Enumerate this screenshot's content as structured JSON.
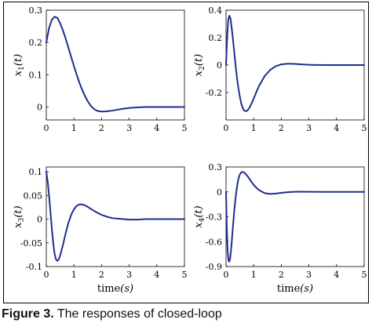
{
  "chart_data": [
    {
      "type": "line",
      "ylabel_var": "x",
      "ylabel_sub": "1",
      "ylabel_arg": "(t)",
      "xlabel_var": "",
      "xlabel_arg": "",
      "xlim": [
        0,
        5
      ],
      "ylim": [
        -0.04,
        0.3
      ],
      "xticks": [
        0,
        1,
        2,
        3,
        4,
        5
      ],
      "yticks": [
        0,
        0.1,
        0.2,
        0.3
      ],
      "ytick_labels": [
        "0",
        "0.1",
        "0.2",
        "0.3"
      ],
      "series": [
        {
          "color": "#1f2e8c",
          "x": [
            0,
            0.1,
            0.2,
            0.3,
            0.4,
            0.5,
            0.6,
            0.7,
            0.8,
            0.9,
            1.0,
            1.1,
            1.2,
            1.3,
            1.4,
            1.5,
            1.6,
            1.7,
            1.8,
            1.9,
            2.0,
            2.1,
            2.2,
            2.4,
            2.6,
            2.8,
            3.0,
            3.3,
            3.6,
            4.0,
            4.5,
            5.0
          ],
          "y": [
            0.2,
            0.245,
            0.27,
            0.28,
            0.276,
            0.26,
            0.238,
            0.212,
            0.184,
            0.155,
            0.127,
            0.1,
            0.075,
            0.053,
            0.034,
            0.018,
            0.005,
            -0.004,
            -0.01,
            -0.013,
            -0.014,
            -0.014,
            -0.013,
            -0.011,
            -0.008,
            -0.005,
            -0.003,
            -0.001,
            0,
            0,
            0,
            0
          ]
        }
      ]
    },
    {
      "type": "line",
      "ylabel_var": "x",
      "ylabel_sub": "2",
      "ylabel_arg": "(t)",
      "xlabel_var": "",
      "xlabel_arg": "",
      "xlim": [
        0,
        5
      ],
      "ylim": [
        -0.4,
        0.4
      ],
      "xticks": [
        0,
        1,
        2,
        3,
        4,
        5
      ],
      "yticks": [
        -0.2,
        0,
        0.2,
        0.4
      ],
      "ytick_labels": [
        "-0.2",
        "0",
        "0.2",
        "0.4"
      ],
      "series": [
        {
          "color": "#1f2e8c",
          "x": [
            0,
            0.04,
            0.08,
            0.12,
            0.16,
            0.2,
            0.25,
            0.3,
            0.35,
            0.4,
            0.45,
            0.5,
            0.55,
            0.6,
            0.65,
            0.7,
            0.75,
            0.8,
            0.85,
            0.9,
            1.0,
            1.1,
            1.2,
            1.4,
            1.6,
            1.8,
            2.0,
            2.2,
            2.4,
            2.6,
            2.8,
            3.0,
            3.3,
            3.6,
            4.0,
            4.5,
            5.0
          ],
          "y": [
            0,
            0.2,
            0.33,
            0.36,
            0.34,
            0.28,
            0.19,
            0.09,
            -0.01,
            -0.1,
            -0.17,
            -0.23,
            -0.28,
            -0.31,
            -0.33,
            -0.335,
            -0.335,
            -0.325,
            -0.31,
            -0.29,
            -0.245,
            -0.195,
            -0.15,
            -0.08,
            -0.035,
            -0.008,
            0.005,
            0.009,
            0.009,
            0.007,
            0.004,
            0.002,
            0.001,
            0,
            0,
            0,
            0
          ]
        }
      ]
    },
    {
      "type": "line",
      "ylabel_var": "x",
      "ylabel_sub": "3",
      "ylabel_arg": "(t)",
      "xlabel_var": "time",
      "xlabel_arg": "(s)",
      "xlim": [
        0,
        5
      ],
      "ylim": [
        -0.1,
        0.11
      ],
      "xticks": [
        0,
        1,
        2,
        3,
        4,
        5
      ],
      "yticks": [
        -0.1,
        -0.05,
        0,
        0.05,
        0.1
      ],
      "ytick_labels": [
        "-0.1",
        "-0.05",
        "0",
        "0.05",
        "0.1"
      ],
      "series": [
        {
          "color": "#1f2e8c",
          "x": [
            0,
            0.05,
            0.1,
            0.15,
            0.2,
            0.25,
            0.3,
            0.35,
            0.4,
            0.45,
            0.5,
            0.6,
            0.7,
            0.8,
            0.9,
            1.0,
            1.1,
            1.2,
            1.3,
            1.4,
            1.5,
            1.6,
            1.8,
            2.0,
            2.2,
            2.4,
            2.6,
            2.8,
            3.0,
            3.3,
            3.6,
            4.0,
            4.5,
            5.0
          ],
          "y": [
            0.1,
            0.08,
            0.05,
            0.015,
            -0.02,
            -0.05,
            -0.073,
            -0.085,
            -0.088,
            -0.085,
            -0.077,
            -0.055,
            -0.03,
            -0.008,
            0.009,
            0.021,
            0.028,
            0.031,
            0.031,
            0.029,
            0.026,
            0.022,
            0.015,
            0.009,
            0.005,
            0.002,
            0.001,
            0,
            -0.001,
            -0.001,
            0,
            0,
            0,
            0
          ]
        }
      ]
    },
    {
      "type": "line",
      "ylabel_var": "x",
      "ylabel_sub": "4",
      "ylabel_arg": "(t)",
      "xlabel_var": "time",
      "xlabel_arg": "(s)",
      "xlim": [
        0,
        5
      ],
      "ylim": [
        -0.9,
        0.3
      ],
      "xticks": [
        0,
        1,
        2,
        3,
        4,
        5
      ],
      "yticks": [
        -0.9,
        -0.6,
        -0.3,
        0,
        0.3
      ],
      "ytick_labels": [
        "-0.9",
        "-0.6",
        "-0.3",
        "0",
        "0.3"
      ],
      "series": [
        {
          "color": "#1f2e8c",
          "x": [
            0,
            0.03,
            0.06,
            0.09,
            0.12,
            0.15,
            0.2,
            0.25,
            0.3,
            0.35,
            0.4,
            0.45,
            0.5,
            0.55,
            0.6,
            0.65,
            0.7,
            0.8,
            0.9,
            1.0,
            1.1,
            1.2,
            1.4,
            1.6,
            1.8,
            2.0,
            2.2,
            2.4,
            2.7,
            3.0,
            3.5,
            4.0,
            4.5,
            5.0
          ],
          "y": [
            0,
            -0.45,
            -0.72,
            -0.83,
            -0.84,
            -0.8,
            -0.63,
            -0.42,
            -0.22,
            -0.06,
            0.07,
            0.16,
            0.21,
            0.235,
            0.24,
            0.235,
            0.22,
            0.18,
            0.13,
            0.085,
            0.05,
            0.02,
            -0.015,
            -0.025,
            -0.02,
            -0.012,
            -0.005,
            0,
            0.002,
            0.001,
            0,
            0,
            0,
            0
          ]
        }
      ]
    }
  ],
  "caption": {
    "label": "Figure 3.",
    "text": "The responses of closed-loop"
  }
}
